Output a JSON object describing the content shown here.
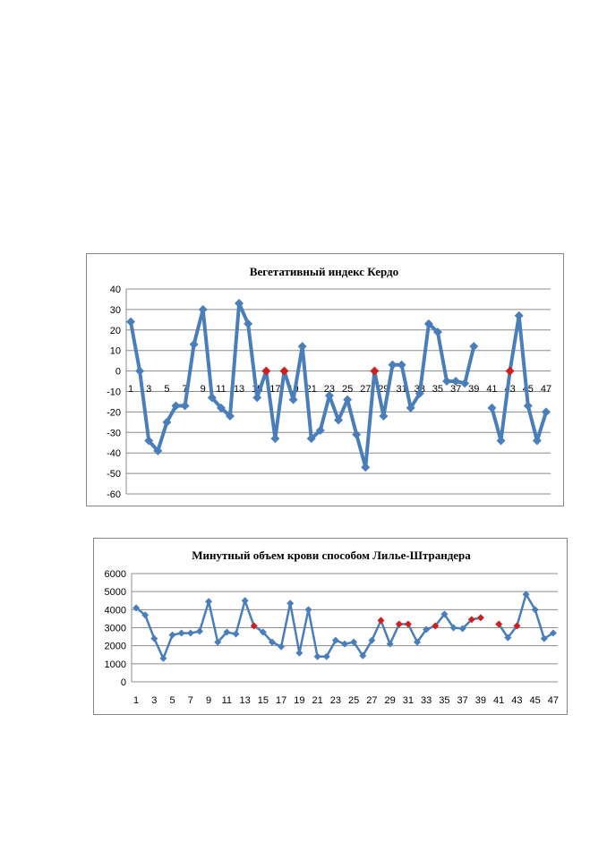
{
  "chart_data": [
    {
      "type": "line",
      "title": "Вегетативный индекс Кердо",
      "xlabel": "",
      "ylabel": "",
      "ylim": [
        -60,
        40
      ],
      "yticks": [
        40,
        30,
        20,
        10,
        0,
        -10,
        -20,
        -30,
        -40,
        -50,
        -60
      ],
      "xtick_labels": [
        "1",
        "3",
        "5",
        "7",
        "9",
        "11",
        "13",
        "15",
        "17",
        "19",
        "21",
        "23",
        "25",
        "27",
        "29",
        "31",
        "33",
        "35",
        "37",
        "39",
        "41",
        "43",
        "45",
        "47"
      ],
      "grid": true,
      "legend": "none",
      "line_color": "#4a7ebb",
      "highlight_color": "#d11f1f",
      "x": [
        1,
        2,
        3,
        4,
        5,
        6,
        7,
        8,
        9,
        10,
        11,
        12,
        13,
        14,
        15,
        16,
        17,
        18,
        19,
        20,
        21,
        22,
        23,
        24,
        25,
        26,
        27,
        28,
        29,
        30,
        31,
        32,
        33,
        34,
        35,
        36,
        37,
        38,
        39,
        40,
        41,
        42,
        43,
        44,
        45,
        46,
        47
      ],
      "values": [
        24,
        0,
        -34,
        -39,
        -25,
        -17,
        -17,
        13,
        30,
        -13,
        -18,
        -22,
        33,
        23,
        -13,
        0,
        -33,
        0,
        -14,
        12,
        -33,
        -29,
        -12,
        -24,
        -14,
        -31,
        -47,
        0,
        -22,
        3,
        3,
        -18,
        -11,
        23,
        19,
        -5,
        -5,
        -6,
        12,
        null,
        -18,
        -34,
        0,
        27,
        -17,
        -34,
        -20
      ],
      "highlighted_x": [
        16,
        18,
        28,
        43
      ]
    },
    {
      "type": "line",
      "title": "Минутный объем крови способом Лилье-Штрандера",
      "xlabel": "",
      "ylabel": "",
      "ylim": [
        0,
        6000
      ],
      "yticks": [
        6000,
        5000,
        4000,
        3000,
        2000,
        1000,
        0
      ],
      "xtick_labels": [
        "1",
        "3",
        "5",
        "7",
        "9",
        "11",
        "13",
        "15",
        "17",
        "19",
        "21",
        "23",
        "25",
        "27",
        "29",
        "31",
        "33",
        "35",
        "37",
        "39",
        "41",
        "43",
        "45",
        "47"
      ],
      "grid": true,
      "legend": "none",
      "line_color": "#4a7ebb",
      "highlight_color": "#d11f1f",
      "x": [
        1,
        2,
        3,
        4,
        5,
        6,
        7,
        8,
        9,
        10,
        11,
        12,
        13,
        14,
        15,
        16,
        17,
        18,
        19,
        20,
        21,
        22,
        23,
        24,
        25,
        26,
        27,
        28,
        29,
        30,
        31,
        32,
        33,
        34,
        35,
        36,
        37,
        38,
        39,
        40,
        41,
        42,
        43,
        44,
        45,
        46,
        47
      ],
      "values": [
        4100,
        3700,
        2400,
        1300,
        2600,
        2700,
        2700,
        2800,
        4450,
        2200,
        2750,
        2650,
        4500,
        3100,
        2750,
        2200,
        1950,
        4350,
        1600,
        4000,
        1400,
        1400,
        2300,
        2100,
        2200,
        1450,
        2300,
        3400,
        2100,
        3200,
        3200,
        2200,
        2900,
        3100,
        3750,
        3000,
        2950,
        3450,
        3550,
        null,
        3200,
        2450,
        3100,
        4850,
        4000,
        2400,
        2700
      ],
      "highlighted_x": [
        14,
        28,
        30,
        31,
        34,
        38,
        39,
        41,
        43
      ]
    }
  ]
}
